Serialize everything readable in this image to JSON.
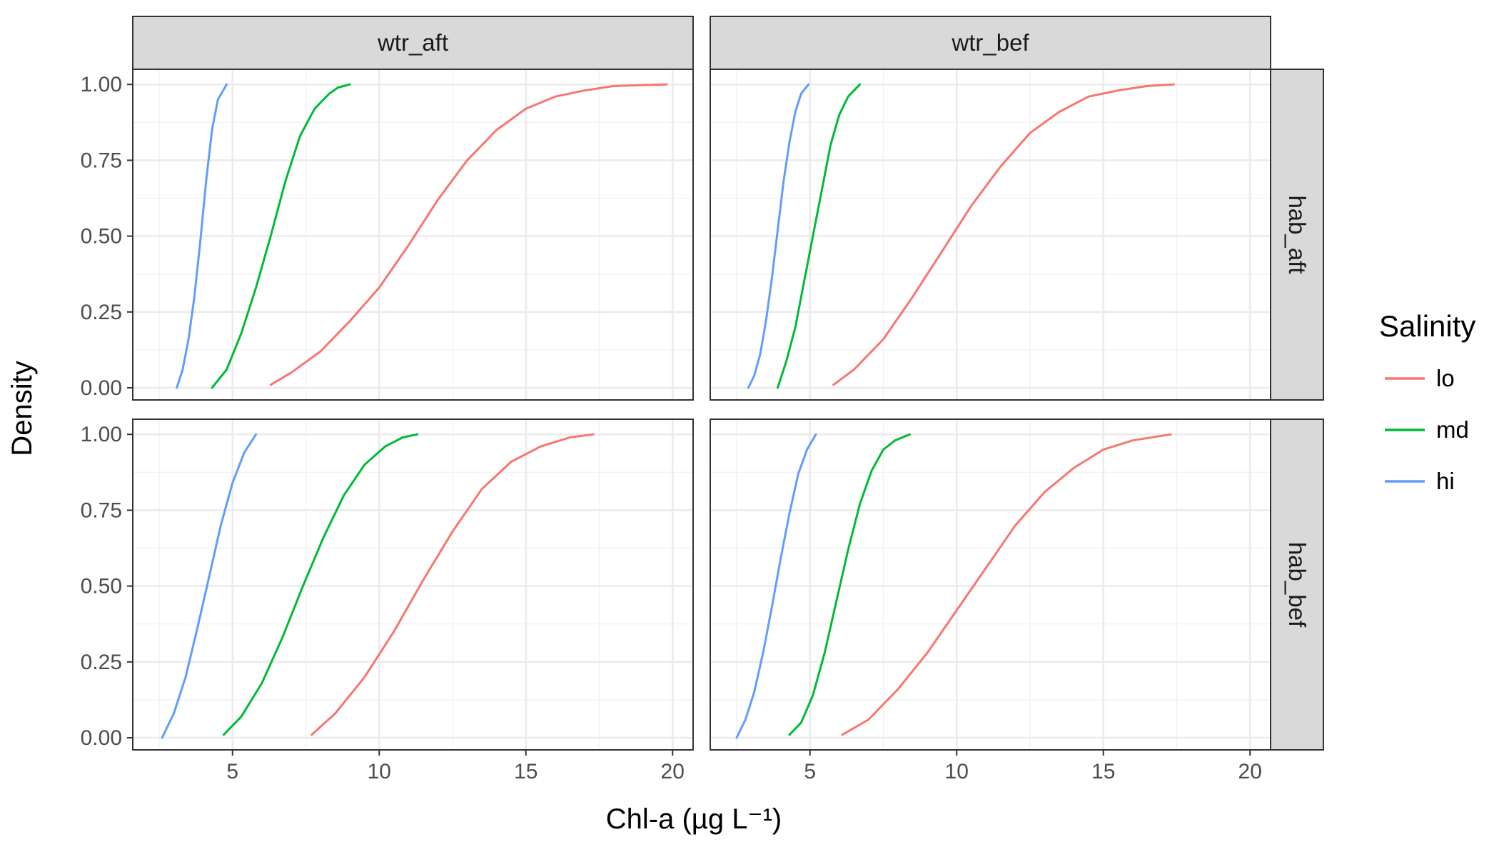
{
  "chart_data": {
    "type": "line",
    "facet_columns": [
      "wtr_aft",
      "wtr_bef"
    ],
    "facet_rows": [
      "hab_aft",
      "hab_bef"
    ],
    "xlabel": "Chl-a (µg L⁻¹)",
    "ylabel": "Density",
    "xlim": [
      1.6,
      20.7
    ],
    "ylim": [
      -0.04,
      1.05
    ],
    "x_ticks": [
      5,
      10,
      15,
      20
    ],
    "y_ticks": [
      0,
      0.25,
      0.5,
      0.75,
      1.0
    ],
    "x_tick_labels": [
      "5",
      "10",
      "15",
      "20"
    ],
    "y_tick_labels": [
      "0.00",
      "0.25",
      "0.50",
      "0.75",
      "1.00"
    ],
    "grid": true,
    "legend_position": "right",
    "legend": {
      "title": "Salinity",
      "items": [
        {
          "label": "lo",
          "color": "#F8766D"
        },
        {
          "label": "md",
          "color": "#00BA38"
        },
        {
          "label": "hi",
          "color": "#619CFF"
        }
      ]
    },
    "panels": [
      {
        "col": "wtr_aft",
        "row": "hab_aft",
        "series": [
          {
            "name": "lo",
            "x": [
              6.3,
              7.0,
              8.0,
              9.0,
              10.0,
              11.0,
              12.0,
              13.0,
              14.0,
              15.0,
              16.0,
              17.0,
              18.0,
              19.8
            ],
            "y": [
              0.01,
              0.05,
              0.12,
              0.22,
              0.33,
              0.47,
              0.62,
              0.75,
              0.85,
              0.92,
              0.96,
              0.98,
              0.995,
              1.0
            ]
          },
          {
            "name": "md",
            "x": [
              4.3,
              4.8,
              5.3,
              5.8,
              6.3,
              6.8,
              7.3,
              7.8,
              8.3,
              8.6,
              9.0
            ],
            "y": [
              0.0,
              0.06,
              0.18,
              0.33,
              0.5,
              0.68,
              0.83,
              0.92,
              0.97,
              0.99,
              1.0
            ]
          },
          {
            "name": "hi",
            "x": [
              3.1,
              3.3,
              3.5,
              3.7,
              3.9,
              4.1,
              4.3,
              4.5,
              4.8
            ],
            "y": [
              0.0,
              0.06,
              0.16,
              0.3,
              0.48,
              0.68,
              0.85,
              0.95,
              1.0
            ]
          }
        ]
      },
      {
        "col": "wtr_bef",
        "row": "hab_aft",
        "series": [
          {
            "name": "lo",
            "x": [
              5.8,
              6.5,
              7.5,
              8.5,
              9.5,
              10.5,
              11.5,
              12.5,
              13.5,
              14.5,
              15.5,
              16.5,
              17.4
            ],
            "y": [
              0.01,
              0.06,
              0.16,
              0.3,
              0.45,
              0.6,
              0.73,
              0.84,
              0.91,
              0.96,
              0.98,
              0.995,
              1.0
            ]
          },
          {
            "name": "md",
            "x": [
              3.9,
              4.2,
              4.5,
              4.8,
              5.1,
              5.4,
              5.7,
              6.0,
              6.3,
              6.7
            ],
            "y": [
              0.0,
              0.09,
              0.2,
              0.35,
              0.5,
              0.65,
              0.8,
              0.9,
              0.96,
              1.0
            ]
          },
          {
            "name": "hi",
            "x": [
              2.9,
              3.1,
              3.3,
              3.5,
              3.7,
              3.9,
              4.1,
              4.3,
              4.5,
              4.7,
              4.95
            ],
            "y": [
              0.0,
              0.04,
              0.11,
              0.22,
              0.36,
              0.52,
              0.68,
              0.81,
              0.91,
              0.97,
              1.0
            ]
          }
        ]
      },
      {
        "col": "wtr_aft",
        "row": "hab_bef",
        "series": [
          {
            "name": "lo",
            "x": [
              7.7,
              8.5,
              9.5,
              10.5,
              11.5,
              12.5,
              13.5,
              14.5,
              15.5,
              16.5,
              17.3
            ],
            "y": [
              0.01,
              0.08,
              0.2,
              0.35,
              0.52,
              0.68,
              0.82,
              0.91,
              0.96,
              0.99,
              1.0
            ]
          },
          {
            "name": "md",
            "x": [
              4.7,
              5.3,
              6.0,
              6.7,
              7.4,
              8.1,
              8.8,
              9.5,
              10.2,
              10.8,
              11.3
            ],
            "y": [
              0.01,
              0.07,
              0.18,
              0.33,
              0.5,
              0.66,
              0.8,
              0.9,
              0.96,
              0.99,
              1.0
            ]
          },
          {
            "name": "hi",
            "x": [
              2.6,
              3.0,
              3.4,
              3.8,
              4.2,
              4.6,
              5.0,
              5.4,
              5.8
            ],
            "y": [
              0.0,
              0.08,
              0.2,
              0.36,
              0.53,
              0.7,
              0.84,
              0.94,
              1.0
            ]
          }
        ]
      },
      {
        "col": "wtr_bef",
        "row": "hab_bef",
        "series": [
          {
            "name": "lo",
            "x": [
              6.1,
              7.0,
              8.0,
              9.0,
              10.0,
              11.0,
              12.0,
              13.0,
              14.0,
              15.0,
              16.0,
              17.3
            ],
            "y": [
              0.01,
              0.06,
              0.16,
              0.28,
              0.42,
              0.56,
              0.7,
              0.81,
              0.89,
              0.95,
              0.98,
              1.0
            ]
          },
          {
            "name": "md",
            "x": [
              4.3,
              4.7,
              5.1,
              5.5,
              5.9,
              6.3,
              6.7,
              7.1,
              7.5,
              7.9,
              8.4
            ],
            "y": [
              0.01,
              0.05,
              0.14,
              0.28,
              0.45,
              0.62,
              0.77,
              0.88,
              0.95,
              0.98,
              1.0
            ]
          },
          {
            "name": "hi",
            "x": [
              2.5,
              2.8,
              3.1,
              3.4,
              3.7,
              4.0,
              4.3,
              4.6,
              4.9,
              5.2
            ],
            "y": [
              0.0,
              0.06,
              0.15,
              0.28,
              0.43,
              0.59,
              0.74,
              0.87,
              0.95,
              1.0
            ]
          }
        ]
      }
    ]
  }
}
